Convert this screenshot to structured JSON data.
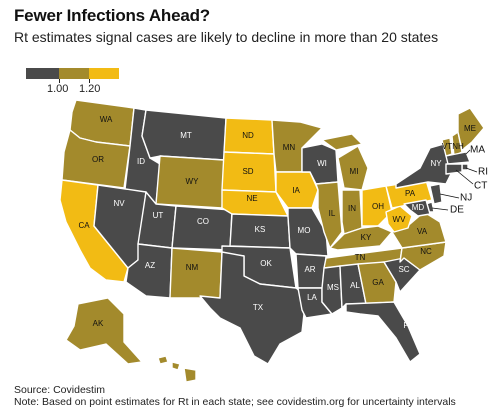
{
  "header": {
    "title": "Fewer Infections Ahead?",
    "subtitle": "Rt estimates signal cases are likely to decline in more than 20 states"
  },
  "legend": {
    "labels": [
      "1.00",
      "1.20"
    ],
    "bins": [
      {
        "name": "below 1.00",
        "color": "#4a4a4a"
      },
      {
        "name": "1.00 to 1.20",
        "color": "#a38a2c"
      },
      {
        "name": "above 1.20",
        "color": "#f2bb14"
      }
    ]
  },
  "colors": {
    "low": "#4a4a4a",
    "mid": "#a38a2c",
    "high": "#f2bb14"
  },
  "states": [
    {
      "abbr": "WA",
      "bin": "mid"
    },
    {
      "abbr": "OR",
      "bin": "mid"
    },
    {
      "abbr": "CA",
      "bin": "high"
    },
    {
      "abbr": "ID",
      "bin": "low"
    },
    {
      "abbr": "NV",
      "bin": "low"
    },
    {
      "abbr": "MT",
      "bin": "low"
    },
    {
      "abbr": "WY",
      "bin": "mid"
    },
    {
      "abbr": "UT",
      "bin": "low"
    },
    {
      "abbr": "AZ",
      "bin": "low"
    },
    {
      "abbr": "CO",
      "bin": "low"
    },
    {
      "abbr": "NM",
      "bin": "mid"
    },
    {
      "abbr": "ND",
      "bin": "high"
    },
    {
      "abbr": "SD",
      "bin": "high"
    },
    {
      "abbr": "NE",
      "bin": "high"
    },
    {
      "abbr": "KS",
      "bin": "low"
    },
    {
      "abbr": "OK",
      "bin": "low"
    },
    {
      "abbr": "TX",
      "bin": "low"
    },
    {
      "abbr": "MN",
      "bin": "mid"
    },
    {
      "abbr": "IA",
      "bin": "high"
    },
    {
      "abbr": "MO",
      "bin": "low"
    },
    {
      "abbr": "AR",
      "bin": "low"
    },
    {
      "abbr": "LA",
      "bin": "low"
    },
    {
      "abbr": "WI",
      "bin": "low"
    },
    {
      "abbr": "IL",
      "bin": "mid"
    },
    {
      "abbr": "MI",
      "bin": "mid"
    },
    {
      "abbr": "IN",
      "bin": "mid"
    },
    {
      "abbr": "OH",
      "bin": "high"
    },
    {
      "abbr": "KY",
      "bin": "mid"
    },
    {
      "abbr": "TN",
      "bin": "mid"
    },
    {
      "abbr": "MS",
      "bin": "low"
    },
    {
      "abbr": "AL",
      "bin": "low"
    },
    {
      "abbr": "GA",
      "bin": "mid"
    },
    {
      "abbr": "FL",
      "bin": "low"
    },
    {
      "abbr": "SC",
      "bin": "low"
    },
    {
      "abbr": "NC",
      "bin": "mid"
    },
    {
      "abbr": "VA",
      "bin": "mid"
    },
    {
      "abbr": "WV",
      "bin": "high"
    },
    {
      "abbr": "PA",
      "bin": "high"
    },
    {
      "abbr": "NY",
      "bin": "low"
    },
    {
      "abbr": "VT",
      "bin": "mid"
    },
    {
      "abbr": "NH",
      "bin": "mid"
    },
    {
      "abbr": "ME",
      "bin": "mid"
    },
    {
      "abbr": "MA",
      "bin": "low"
    },
    {
      "abbr": "RI",
      "bin": "low"
    },
    {
      "abbr": "CT",
      "bin": "low"
    },
    {
      "abbr": "NJ",
      "bin": "low"
    },
    {
      "abbr": "DE",
      "bin": "low"
    },
    {
      "abbr": "MD",
      "bin": "low"
    },
    {
      "abbr": "AK",
      "bin": "mid"
    },
    {
      "abbr": "HI",
      "bin": "mid"
    }
  ],
  "footer": {
    "source": "Source: Covidestim",
    "note": "Note: Based on point estimates for Rt in each state; see covidestim.org for uncertainty intervals"
  }
}
